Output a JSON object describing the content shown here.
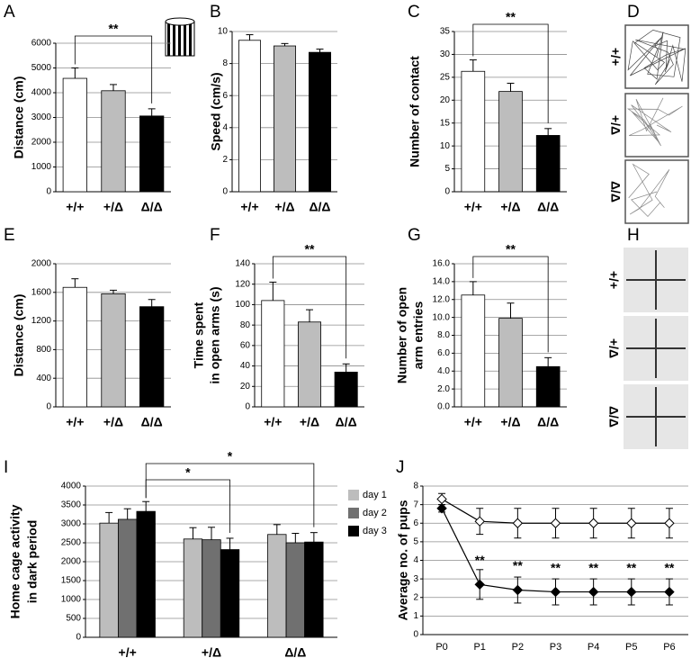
{
  "chart_data": [
    {
      "type": "bar",
      "panel": "A",
      "ylabel": "Distance (cm)",
      "categories": [
        "+/+",
        "+/Δ",
        "Δ/Δ"
      ],
      "values": [
        4580,
        4080,
        3060
      ],
      "errors": [
        420,
        250,
        290
      ],
      "colors": [
        "#ffffff",
        "#bdbdbd",
        "#000000"
      ],
      "ylim": [
        0,
        6000
      ],
      "yticks": [
        0,
        1000,
        2000,
        3000,
        4000,
        5000,
        6000
      ],
      "grid": true,
      "annotations": [
        "**"
      ]
    },
    {
      "type": "bar",
      "panel": "B",
      "ylabel": "Speed (cm/s)",
      "categories": [
        "+/+",
        "+/Δ",
        "Δ/Δ"
      ],
      "values": [
        9.45,
        9.1,
        8.7
      ],
      "errors": [
        0.35,
        0.15,
        0.2
      ],
      "colors": [
        "#ffffff",
        "#bdbdbd",
        "#000000"
      ],
      "ylim": [
        0,
        10
      ],
      "yticks": [
        0,
        2,
        4,
        6,
        8,
        10
      ],
      "grid": true
    },
    {
      "type": "bar",
      "panel": "C",
      "ylabel": "Number of contact",
      "categories": [
        "+/+",
        "+/Δ",
        "Δ/Δ"
      ],
      "values": [
        26.3,
        21.9,
        12.3
      ],
      "errors": [
        2.5,
        1.8,
        1.5
      ],
      "colors": [
        "#ffffff",
        "#bdbdbd",
        "#000000"
      ],
      "ylim": [
        0,
        35
      ],
      "yticks": [
        0,
        5,
        10,
        15,
        20,
        25,
        30,
        35
      ],
      "grid": true,
      "annotations": [
        "**"
      ]
    },
    {
      "type": "image",
      "panel": "D",
      "style": "track",
      "row_labels": [
        "+/+",
        "+/Δ",
        "Δ/Δ"
      ]
    },
    {
      "type": "bar",
      "panel": "E",
      "ylabel": "Distance (cm)",
      "categories": [
        "+/+",
        "+/Δ",
        "Δ/Δ"
      ],
      "values": [
        1670,
        1580,
        1400
      ],
      "errors": [
        120,
        50,
        100
      ],
      "colors": [
        "#ffffff",
        "#bdbdbd",
        "#000000"
      ],
      "ylim": [
        0,
        2000
      ],
      "yticks": [
        0,
        400,
        800,
        1200,
        1600,
        2000
      ],
      "grid": true
    },
    {
      "type": "bar",
      "panel": "F",
      "ylabel": [
        "Time spent",
        "in open arms (s)"
      ],
      "categories": [
        "+/+",
        "+/Δ",
        "Δ/Δ"
      ],
      "values": [
        104,
        83,
        34
      ],
      "errors": [
        18,
        12,
        8
      ],
      "colors": [
        "#ffffff",
        "#bdbdbd",
        "#000000"
      ],
      "ylim": [
        0,
        140
      ],
      "yticks": [
        0,
        20,
        40,
        60,
        80,
        100,
        120,
        140
      ],
      "grid": true,
      "annotations": [
        "**"
      ]
    },
    {
      "type": "bar",
      "panel": "G",
      "ylabel": [
        "Number of open",
        "arm entries"
      ],
      "categories": [
        "+/+",
        "+/Δ",
        "Δ/Δ"
      ],
      "values": [
        12.5,
        9.9,
        4.5
      ],
      "errors": [
        1.5,
        1.7,
        1.0
      ],
      "colors": [
        "#ffffff",
        "#bdbdbd",
        "#000000"
      ],
      "ylim": [
        0,
        16
      ],
      "yticks": [
        {
          "value": 0,
          "label": "0.0"
        },
        {
          "value": 2,
          "label": "2.0"
        },
        {
          "value": 4,
          "label": "4.0"
        },
        {
          "value": 6,
          "label": "6.0"
        },
        {
          "value": 8,
          "label": "8.0"
        },
        {
          "value": 10,
          "label": "10.0"
        },
        {
          "value": 12,
          "label": "12.0"
        },
        {
          "value": 14,
          "label": "14.0"
        },
        {
          "value": 16,
          "label": "16.0"
        }
      ],
      "grid": true,
      "annotations": [
        "**"
      ]
    },
    {
      "type": "image",
      "panel": "H",
      "style": "maze",
      "row_labels": [
        "+/+",
        "+/Δ",
        "Δ/Δ"
      ]
    },
    {
      "type": "bar",
      "panel": "I",
      "ylabel": [
        "Home cage activity",
        "in dark period"
      ],
      "categories": [
        "+/+",
        "+/Δ",
        "Δ/Δ"
      ],
      "series": [
        {
          "name": "day 1",
          "color": "#bdbdbd",
          "values": [
            3020,
            2600,
            2720
          ],
          "errors": [
            280,
            300,
            260
          ]
        },
        {
          "name": "day 2",
          "color": "#707070",
          "values": [
            3120,
            2580,
            2500
          ],
          "errors": [
            280,
            330,
            250
          ]
        },
        {
          "name": "day 3",
          "color": "#000000",
          "values": [
            3330,
            2320,
            2520
          ],
          "errors": [
            260,
            300,
            250
          ]
        }
      ],
      "ylim": [
        0,
        4000
      ],
      "yticks": [
        0,
        500,
        1000,
        1500,
        2000,
        2500,
        3000,
        3500,
        4000
      ],
      "grid": true,
      "annotations": [
        "*",
        "*"
      ]
    },
    {
      "type": "line",
      "panel": "J",
      "ylabel": "Average no. of pups",
      "categories": [
        "P0",
        "P1",
        "P2",
        "P3",
        "P4",
        "P5",
        "P6"
      ],
      "series": [
        {
          "color": "#ffffff",
          "values": [
            7.3,
            6.1,
            6.0,
            6.0,
            6.0,
            6.0,
            6.0
          ],
          "errors": [
            0.3,
            0.7,
            0.8,
            0.8,
            0.8,
            0.8,
            0.8
          ]
        },
        {
          "color": "#000000",
          "values": [
            6.8,
            2.7,
            2.4,
            2.3,
            2.3,
            2.3,
            2.3
          ],
          "errors": [
            0.2,
            0.8,
            0.7,
            0.7,
            0.7,
            0.7,
            0.7
          ],
          "value_labels": [
            null,
            "**",
            "**",
            "**",
            "**",
            "**",
            "**"
          ]
        }
      ],
      "ylim": [
        0,
        8
      ],
      "yticks": [
        0,
        1,
        2,
        3,
        4,
        5,
        6,
        7,
        8
      ],
      "grid": true
    }
  ]
}
